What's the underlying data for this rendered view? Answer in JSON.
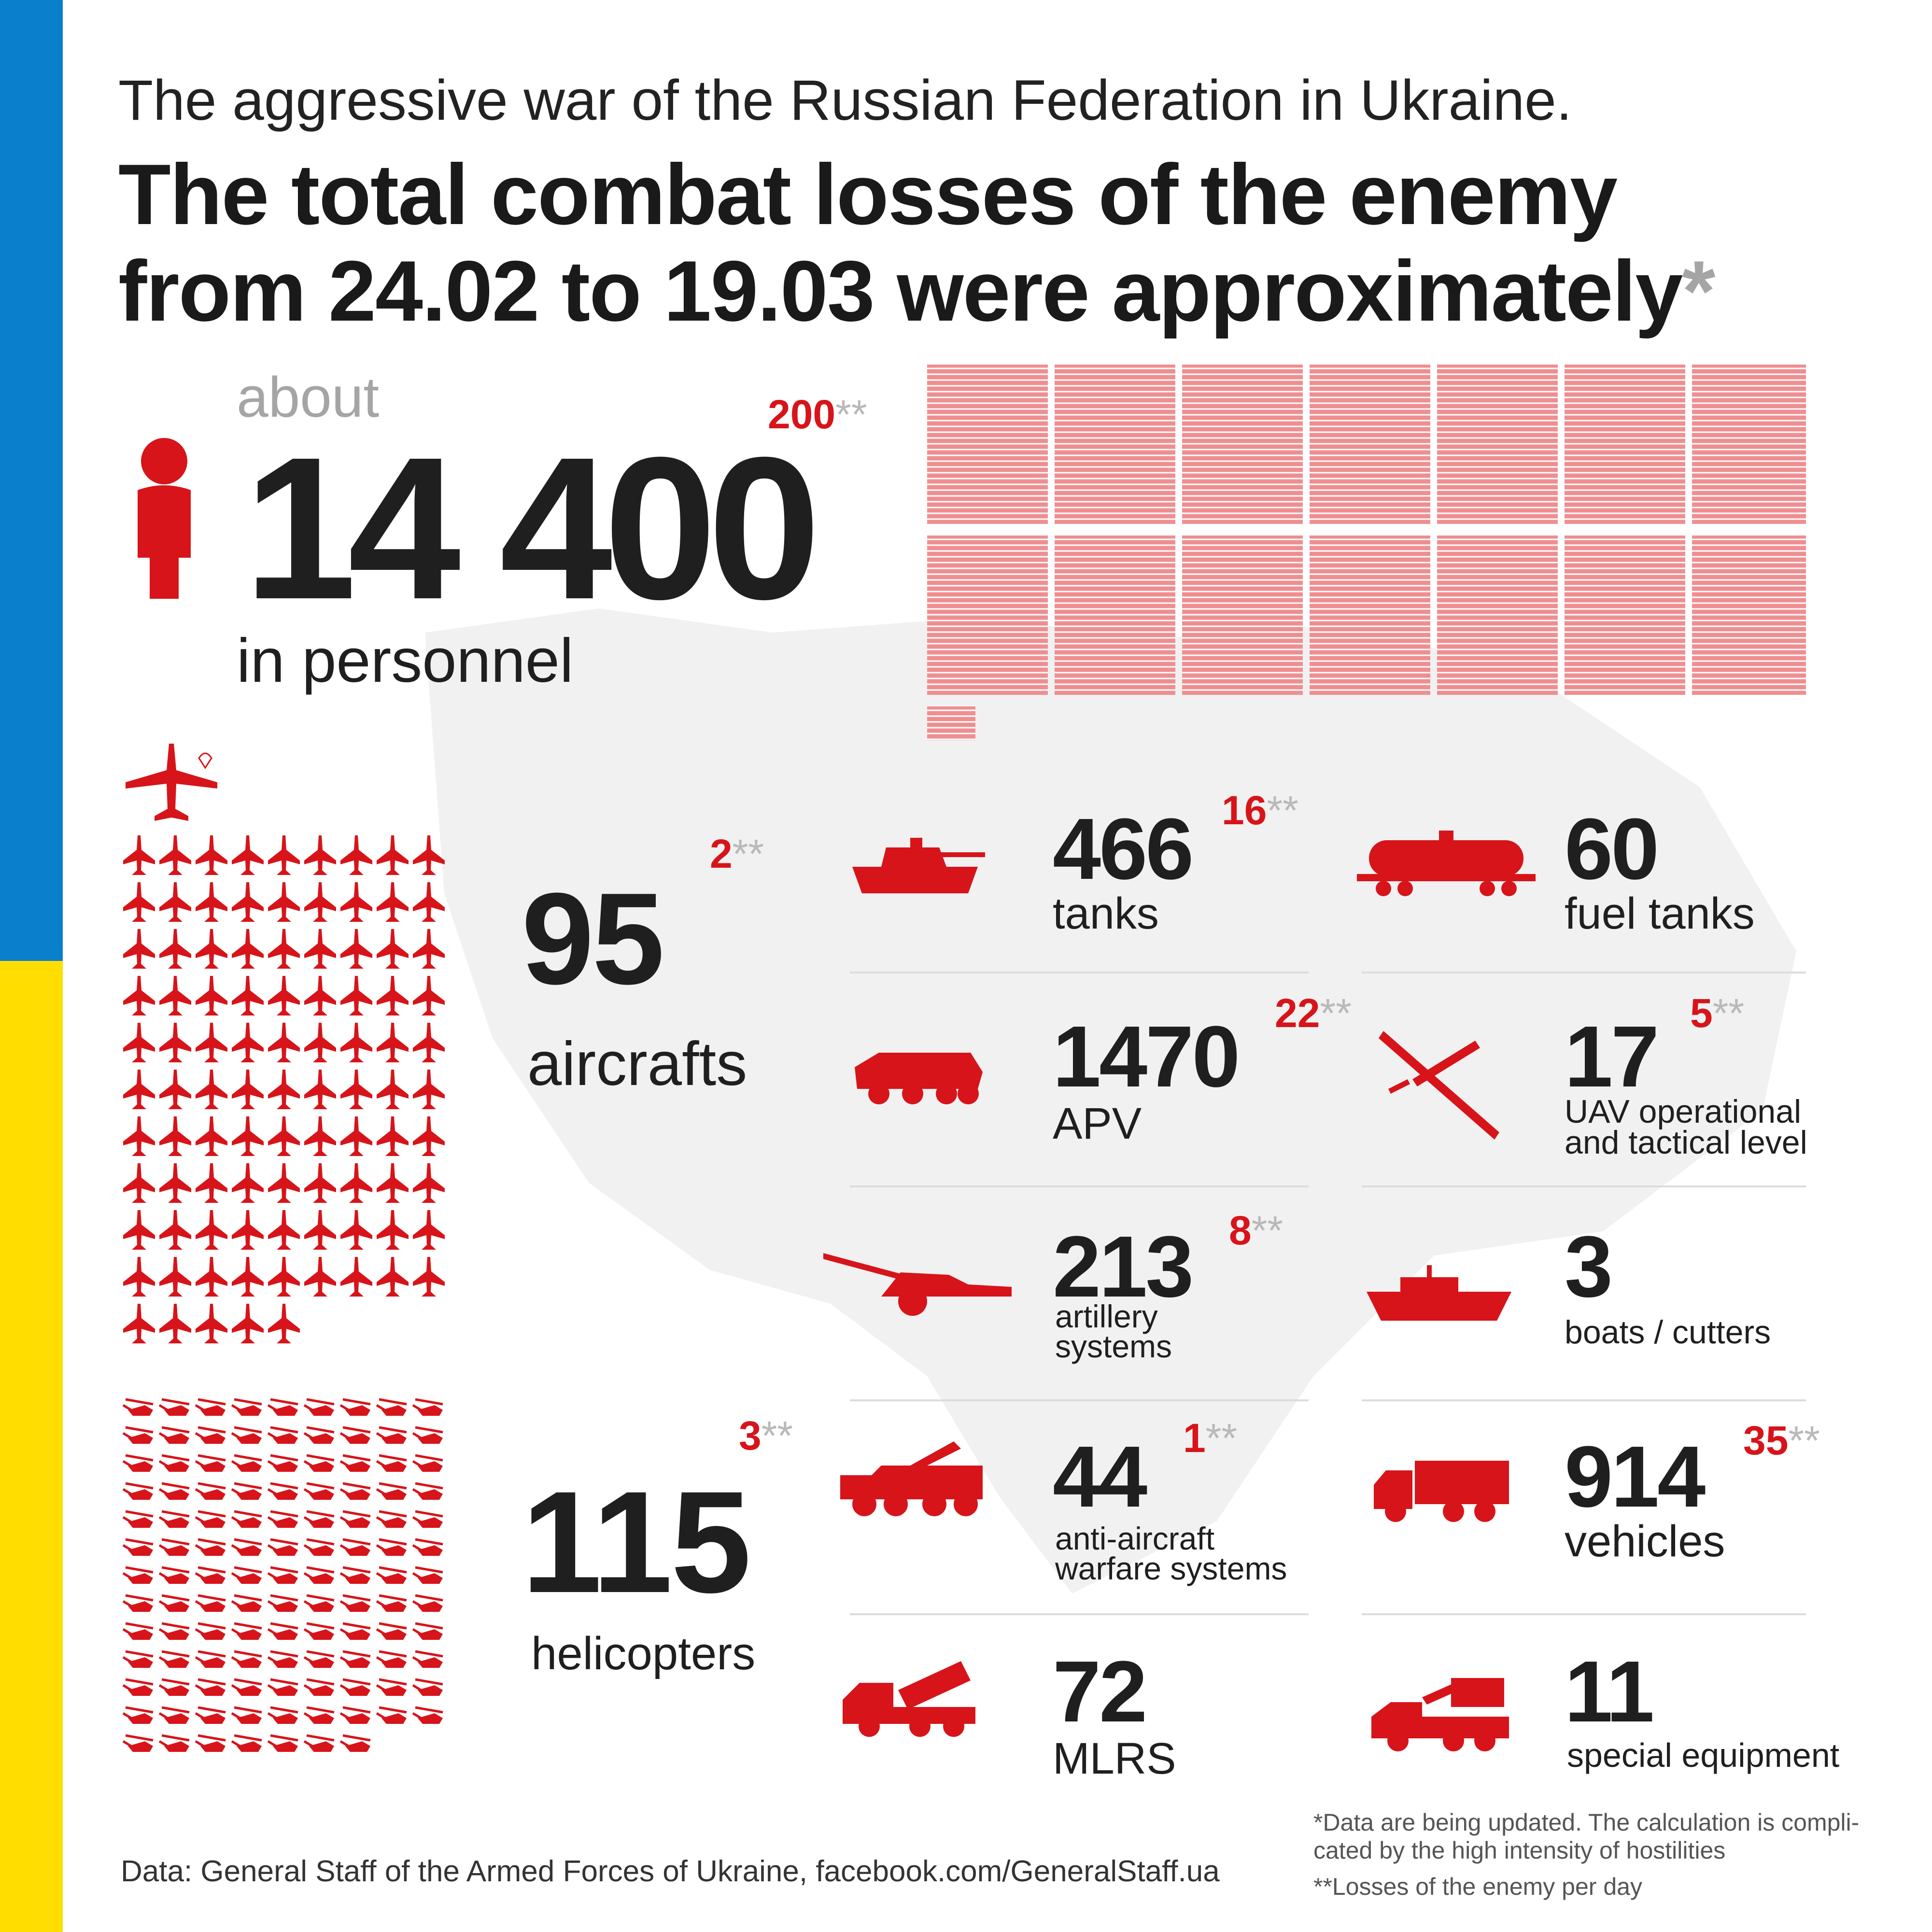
{
  "colors": {
    "flag_blue": "#0a7fcc",
    "flag_yellow": "#ffdd00",
    "accent_red": "#d7141a",
    "grid_red": "#ef8e90",
    "text_dark": "#1f1f1f",
    "grey": "#a5a5a5"
  },
  "header": {
    "subtitle": "The aggressive war of the Russian Federation in Ukraine.",
    "title_line1": "The total combat losses of the enemy",
    "title_line2": "from 24.02 to 19.03 were approximately",
    "title_star": "*"
  },
  "personnel": {
    "prefix": "about",
    "value": "14 400",
    "label": "in personnel",
    "daily": "200",
    "icon": "person-icon",
    "grid_count": 14400
  },
  "aircraft": {
    "value": "95",
    "label": "aircrafts",
    "daily": "2",
    "icon": "jet-icon",
    "count": 95,
    "header_icon": "transport-plane-icon"
  },
  "helicopters": {
    "value": "115",
    "label": "helicopters",
    "daily": "3",
    "icon": "helicopter-icon",
    "count": 115
  },
  "stars": "**",
  "equipment": {
    "tanks": {
      "value": "466",
      "label": "tanks",
      "daily": "16",
      "icon": "tank-icon"
    },
    "fuel_tanks": {
      "value": "60",
      "label": "fuel tanks",
      "icon": "fuel-tank-wagon-icon"
    },
    "apv": {
      "value": "1470",
      "label": "APV",
      "daily": "22",
      "icon": "apv-icon"
    },
    "uav": {
      "value": "17",
      "label_line1": "UAV operational",
      "label_line2": "and tactical level",
      "daily": "5",
      "icon": "drone-icon"
    },
    "artillery": {
      "value": "213",
      "label_line1": "artillery",
      "label_line2": "systems",
      "daily": "8",
      "icon": "howitzer-icon"
    },
    "boats": {
      "value": "3",
      "label": "boats / cutters",
      "icon": "boat-icon"
    },
    "anti_aircraft": {
      "value": "44",
      "label_line1": "anti-aircraft",
      "label_line2": "warfare systems",
      "daily": "1",
      "icon": "anti-aircraft-icon"
    },
    "vehicles": {
      "value": "914",
      "label": "vehicles",
      "daily": "35",
      "icon": "truck-icon"
    },
    "mlrs": {
      "value": "72",
      "label": "MLRS",
      "icon": "mlrs-icon"
    },
    "special": {
      "value": "11",
      "label": "special equipment",
      "icon": "special-vehicle-icon"
    }
  },
  "footer": {
    "source": "Data: General Staff of the Armed Forces of Ukraine, facebook.com/GeneralStaff.ua",
    "note1_line1": "*Data are being updated. The calculation is compli-",
    "note1_line2": "cated by the high intensity of hostilities",
    "note2": "**Losses of the enemy per day"
  }
}
